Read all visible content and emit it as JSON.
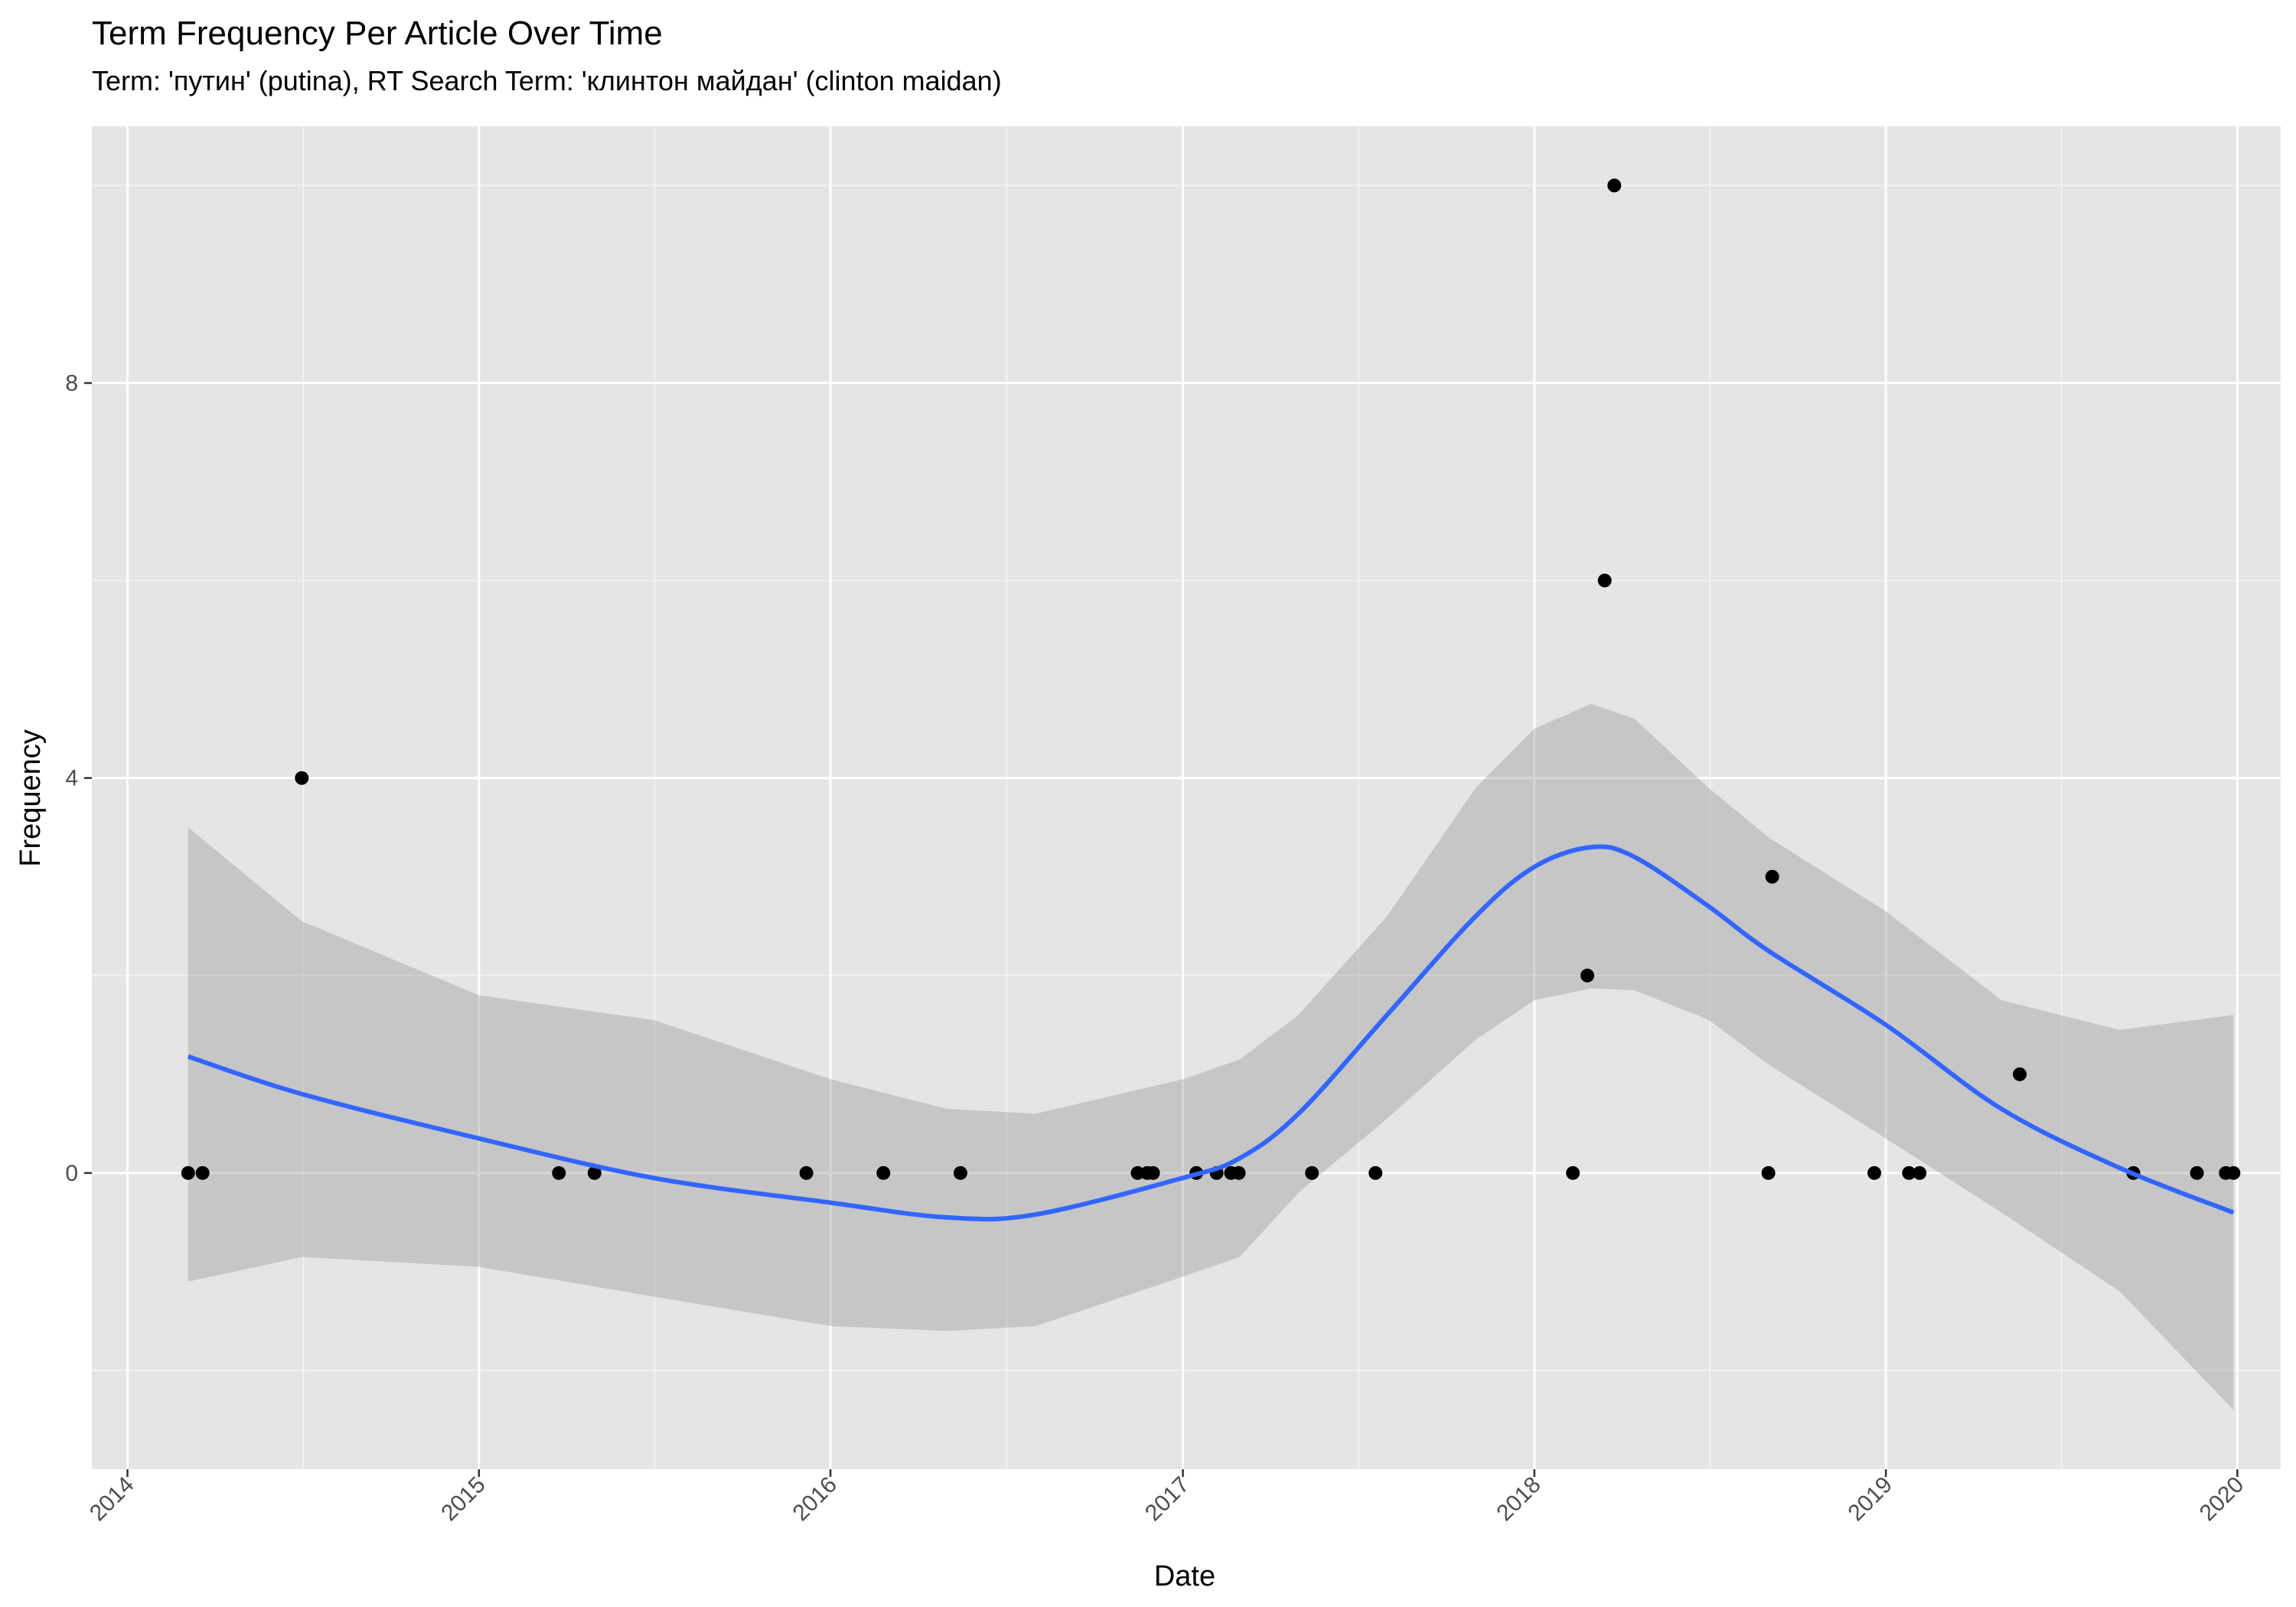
{
  "chart_data": {
    "type": "scatter",
    "title": "Term Frequency Per Article Over Time",
    "subtitle": "Term: 'путин' (putina), RT Search Term: 'клинтон майдан' (clinton maidan)",
    "xlabel": "Date",
    "ylabel": "Frequency",
    "x_ticks": [
      "2014",
      "2015",
      "2016",
      "2017",
      "2018",
      "2019",
      "2020"
    ],
    "y_ticks": [
      "0",
      "4",
      "8"
    ],
    "xlim": [
      "2013-11-25",
      "2020-02-15"
    ],
    "ylim": [
      -3,
      10.6
    ],
    "grid": true,
    "points": [
      {
        "date": "2014-03-05",
        "value": 0
      },
      {
        "date": "2014-03-20",
        "value": 0
      },
      {
        "date": "2014-07-01",
        "value": 4
      },
      {
        "date": "2015-03-25",
        "value": 0
      },
      {
        "date": "2015-05-01",
        "value": 0
      },
      {
        "date": "2015-12-07",
        "value": 0
      },
      {
        "date": "2016-02-25",
        "value": 0
      },
      {
        "date": "2016-05-15",
        "value": 0
      },
      {
        "date": "2016-11-15",
        "value": 0
      },
      {
        "date": "2016-11-25",
        "value": 0
      },
      {
        "date": "2016-12-01",
        "value": 0
      },
      {
        "date": "2017-01-15",
        "value": 0
      },
      {
        "date": "2017-02-05",
        "value": 0
      },
      {
        "date": "2017-02-20",
        "value": 0
      },
      {
        "date": "2017-02-28",
        "value": 0
      },
      {
        "date": "2017-05-15",
        "value": 0
      },
      {
        "date": "2017-07-20",
        "value": 0
      },
      {
        "date": "2018-02-10",
        "value": 0
      },
      {
        "date": "2018-02-25",
        "value": 2
      },
      {
        "date": "2018-03-15",
        "value": 6
      },
      {
        "date": "2018-03-25",
        "value": 10
      },
      {
        "date": "2018-09-01",
        "value": 0
      },
      {
        "date": "2018-09-05",
        "value": 3
      },
      {
        "date": "2018-12-20",
        "value": 0
      },
      {
        "date": "2019-01-25",
        "value": 0
      },
      {
        "date": "2019-02-05",
        "value": 0
      },
      {
        "date": "2019-05-20",
        "value": 1
      },
      {
        "date": "2019-09-15",
        "value": 0
      },
      {
        "date": "2019-11-20",
        "value": 0
      },
      {
        "date": "2019-12-20",
        "value": 0
      },
      {
        "date": "2019-12-28",
        "value": 0
      }
    ],
    "smooth": {
      "method": "loess",
      "color": "#3366ff",
      "band_color": "#999999",
      "dates": [
        "2014-03-05",
        "2014-07-01",
        "2015-01-01",
        "2015-07-01",
        "2016-01-01",
        "2016-05-01",
        "2016-08-01",
        "2017-01-01",
        "2017-03-01",
        "2017-05-01",
        "2017-08-01",
        "2017-11-01",
        "2018-01-01",
        "2018-03-01",
        "2018-04-15",
        "2018-07-01",
        "2018-09-01",
        "2019-01-01",
        "2019-05-01",
        "2019-09-01",
        "2019-12-28"
      ],
      "fit": [
        1.18,
        0.8,
        0.35,
        -0.05,
        -0.3,
        -0.45,
        -0.42,
        -0.05,
        0.15,
        0.6,
        1.6,
        2.6,
        3.1,
        3.3,
        3.2,
        2.7,
        2.25,
        1.5,
        0.65,
        0.05,
        -0.4
      ],
      "lower": [
        -1.1,
        -0.85,
        -0.95,
        -1.25,
        -1.55,
        -1.6,
        -1.55,
        -1.05,
        -0.85,
        -0.2,
        0.55,
        1.35,
        1.75,
        1.87,
        1.85,
        1.55,
        1.1,
        0.35,
        -0.4,
        -1.2,
        -2.4
      ],
      "upper": [
        3.5,
        2.55,
        1.8,
        1.55,
        0.95,
        0.65,
        0.6,
        0.95,
        1.15,
        1.6,
        2.6,
        3.9,
        4.5,
        4.75,
        4.6,
        3.9,
        3.4,
        2.65,
        1.75,
        1.45,
        1.6
      ]
    }
  }
}
